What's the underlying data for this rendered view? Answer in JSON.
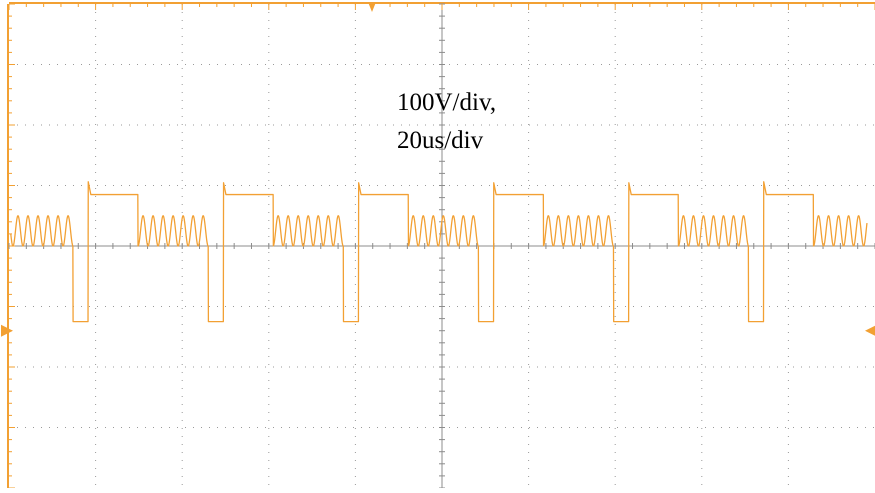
{
  "chart_data": {
    "type": "line",
    "title": "",
    "xlabel": "",
    "ylabel": "",
    "annotations": [
      "100V/div,",
      "20us/div"
    ],
    "volts_per_div": 100,
    "time_per_div_us": 20,
    "divisions": {
      "horizontal": 10,
      "vertical": 8
    },
    "x_range_us": [
      0,
      200
    ],
    "y_range_v": [
      -400,
      400
    ],
    "grid": true,
    "series": [
      {
        "color": "#f2a033",
        "waveform": {
          "period_us": 31.2,
          "high_level_v": 85,
          "low_level_v": -125,
          "high_plateau_duration_us": 11.5,
          "low_pulse_duration_us": 3.5,
          "ringing_amplitude_v": 25,
          "ringing_cycles": 7,
          "first_high_plateau_start_us": 18.3,
          "start_us": 0.4,
          "end_us": 198.2
        }
      }
    ],
    "markers": {
      "trigger_position": "top-center",
      "channel_ground": "left",
      "trigger_level": "right"
    }
  },
  "colors": {
    "trace": "#f2a033",
    "frame": "#f2a033",
    "grid": "#9a9a9a",
    "background": "#ffffff"
  }
}
